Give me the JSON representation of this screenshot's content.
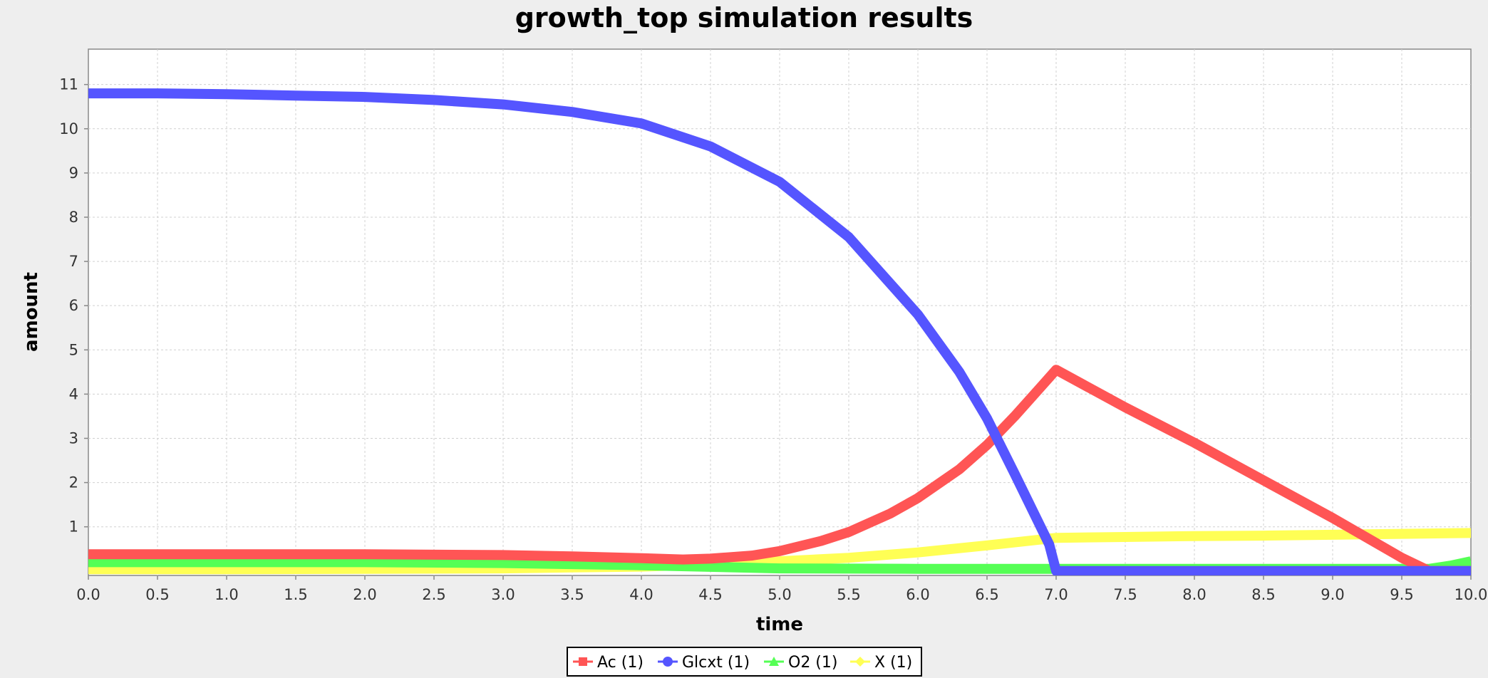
{
  "chart_data": {
    "type": "line",
    "title": "growth_top simulation results",
    "xlabel": "time",
    "ylabel": "amount",
    "xlim": [
      0,
      10
    ],
    "ylim": [
      -0.1,
      11.8
    ],
    "xticks": [
      0,
      0.5,
      1,
      1.5,
      2,
      2.5,
      3,
      3.5,
      4,
      4.5,
      5,
      5.5,
      6,
      6.5,
      7,
      7.5,
      8,
      8.5,
      9,
      9.5,
      10
    ],
    "xtick_labels": [
      "0.0",
      "0.5",
      "1.0",
      "1.5",
      "2.0",
      "2.5",
      "3.0",
      "3.5",
      "4.0",
      "4.5",
      "5.0",
      "5.5",
      "6.0",
      "6.5",
      "7.0",
      "7.5",
      "8.0",
      "8.5",
      "9.0",
      "9.5",
      "10.0"
    ],
    "yticks": [
      1,
      2,
      3,
      4,
      5,
      6,
      7,
      8,
      9,
      10,
      11
    ],
    "ytick_labels": [
      "1",
      "2",
      "3",
      "4",
      "5",
      "6",
      "7",
      "8",
      "9",
      "10",
      "11"
    ],
    "grid": true,
    "legend_position": "bottom",
    "series": [
      {
        "name": "Ac (1)",
        "color": "#ff5555",
        "marker": "square",
        "x": [
          0,
          1,
          2,
          3,
          3.5,
          4,
          4.3,
          4.5,
          4.8,
          5,
          5.3,
          5.5,
          5.8,
          6,
          6.3,
          6.5,
          6.7,
          6.9,
          7.0,
          7.5,
          8,
          8.5,
          9,
          9.5,
          9.7,
          10
        ],
        "y": [
          0.38,
          0.38,
          0.38,
          0.36,
          0.33,
          0.29,
          0.26,
          0.28,
          0.35,
          0.45,
          0.68,
          0.88,
          1.3,
          1.65,
          2.3,
          2.85,
          3.5,
          4.2,
          4.55,
          3.7,
          2.9,
          2.05,
          1.2,
          0.3,
          0.0,
          0.0
        ]
      },
      {
        "name": "Glcxt (1)",
        "color": "#5555ff",
        "marker": "circle",
        "x": [
          0,
          0.5,
          1,
          1.5,
          2,
          2.5,
          3,
          3.5,
          4,
          4.5,
          5,
          5.5,
          6,
          6.3,
          6.5,
          6.7,
          6.95,
          7.0,
          8,
          9,
          10
        ],
        "y": [
          10.8,
          10.8,
          10.78,
          10.75,
          10.72,
          10.65,
          10.55,
          10.38,
          10.12,
          9.6,
          8.8,
          7.55,
          5.8,
          4.5,
          3.45,
          2.2,
          0.6,
          0.0,
          0.0,
          0.0,
          0.0
        ]
      },
      {
        "name": "O2 (1)",
        "color": "#55ff55",
        "marker": "triangle",
        "x": [
          0,
          1,
          2,
          3,
          4,
          5,
          6,
          7,
          8,
          9,
          9.7,
          9.85,
          10
        ],
        "y": [
          0.2,
          0.2,
          0.2,
          0.18,
          0.13,
          0.06,
          0.05,
          0.05,
          0.05,
          0.05,
          0.05,
          0.12,
          0.22
        ]
      },
      {
        "name": "X (1)",
        "color": "#ffff55",
        "marker": "diamond",
        "x": [
          0,
          1,
          2,
          3,
          3.5,
          4,
          4.5,
          5,
          5.5,
          6,
          6.5,
          7,
          7.5,
          8,
          8.5,
          9,
          9.5,
          10
        ],
        "y": [
          0.04,
          0.04,
          0.05,
          0.06,
          0.08,
          0.1,
          0.15,
          0.22,
          0.3,
          0.42,
          0.58,
          0.75,
          0.77,
          0.79,
          0.8,
          0.82,
          0.84,
          0.86
        ]
      }
    ]
  }
}
